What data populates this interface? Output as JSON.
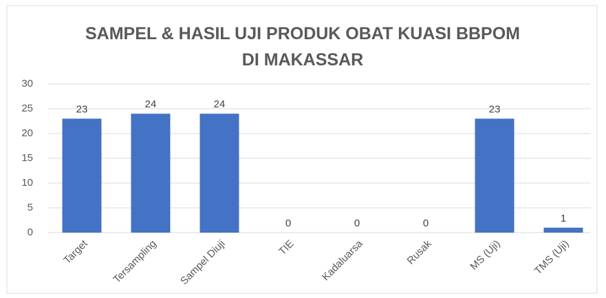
{
  "chart_data": {
    "type": "bar",
    "title": "SAMPEL & HASIL UJI PRODUK OBAT KUASI BBPOM DI MAKASSAR",
    "categories": [
      "Target",
      "Tersampling",
      "Sampel Diuji",
      "TIE",
      "Kadaluarsa",
      "Rusak",
      "MS (Uji)",
      "TMS (Uji)"
    ],
    "values": [
      23,
      24,
      24,
      0,
      0,
      0,
      23,
      1
    ],
    "color": "#4472c4",
    "ylim": [
      0,
      30
    ],
    "yticks": [
      0,
      5,
      10,
      15,
      20,
      25,
      30
    ],
    "grid": true
  }
}
